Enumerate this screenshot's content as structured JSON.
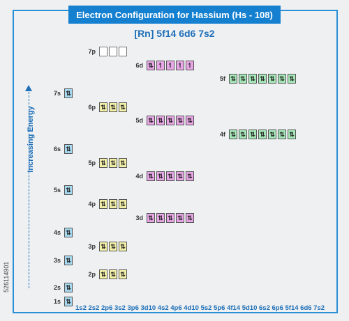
{
  "title": "Electron Configuration for Hassium (Hs - 108)",
  "configuration": "[Rn] 5f14 6d6 7s2",
  "axis_label": "Increasing Energy",
  "footer": "1s2 2s2 2p6 3s2 3p6 3d10 4s2 4p6 4d10 5s2 5p6 4f14 5d10 6s2 6p6 5f14 6d6 7s2",
  "watermark": "526114901",
  "colors": {
    "s": "#a6d9ef",
    "p": "#f3f0a8",
    "d": "#e9a6e6",
    "f": "#a6e7b8",
    "accent": "#1580d0"
  },
  "symbols": {
    "paired": "⇅",
    "single": "↿",
    "empty": ""
  },
  "orbitals": [
    {
      "name": "1s",
      "type": "s",
      "boxes": [
        "paired"
      ]
    },
    {
      "name": "2s",
      "type": "s",
      "boxes": [
        "paired"
      ]
    },
    {
      "name": "2p",
      "type": "p",
      "boxes": [
        "paired",
        "paired",
        "paired"
      ]
    },
    {
      "name": "3s",
      "type": "s",
      "boxes": [
        "paired"
      ]
    },
    {
      "name": "3p",
      "type": "p",
      "boxes": [
        "paired",
        "paired",
        "paired"
      ]
    },
    {
      "name": "4s",
      "type": "s",
      "boxes": [
        "paired"
      ]
    },
    {
      "name": "3d",
      "type": "d",
      "boxes": [
        "paired",
        "paired",
        "paired",
        "paired",
        "paired"
      ]
    },
    {
      "name": "4p",
      "type": "p",
      "boxes": [
        "paired",
        "paired",
        "paired"
      ]
    },
    {
      "name": "5s",
      "type": "s",
      "boxes": [
        "paired"
      ]
    },
    {
      "name": "4d",
      "type": "d",
      "boxes": [
        "paired",
        "paired",
        "paired",
        "paired",
        "paired"
      ]
    },
    {
      "name": "5p",
      "type": "p",
      "boxes": [
        "paired",
        "paired",
        "paired"
      ]
    },
    {
      "name": "6s",
      "type": "s",
      "boxes": [
        "paired"
      ]
    },
    {
      "name": "4f",
      "type": "f",
      "boxes": [
        "paired",
        "paired",
        "paired",
        "paired",
        "paired",
        "paired",
        "paired"
      ]
    },
    {
      "name": "5d",
      "type": "d",
      "boxes": [
        "paired",
        "paired",
        "paired",
        "paired",
        "paired"
      ]
    },
    {
      "name": "6p",
      "type": "p",
      "boxes": [
        "paired",
        "paired",
        "paired"
      ]
    },
    {
      "name": "7s",
      "type": "s",
      "boxes": [
        "paired"
      ]
    },
    {
      "name": "5f",
      "type": "f",
      "boxes": [
        "paired",
        "paired",
        "paired",
        "paired",
        "paired",
        "paired",
        "paired"
      ]
    },
    {
      "name": "6d",
      "type": "d",
      "boxes": [
        "paired",
        "single",
        "single",
        "single",
        "single"
      ]
    },
    {
      "name": "7p",
      "type": "p",
      "boxes": [
        "empty",
        "empty",
        "empty"
      ]
    }
  ]
}
